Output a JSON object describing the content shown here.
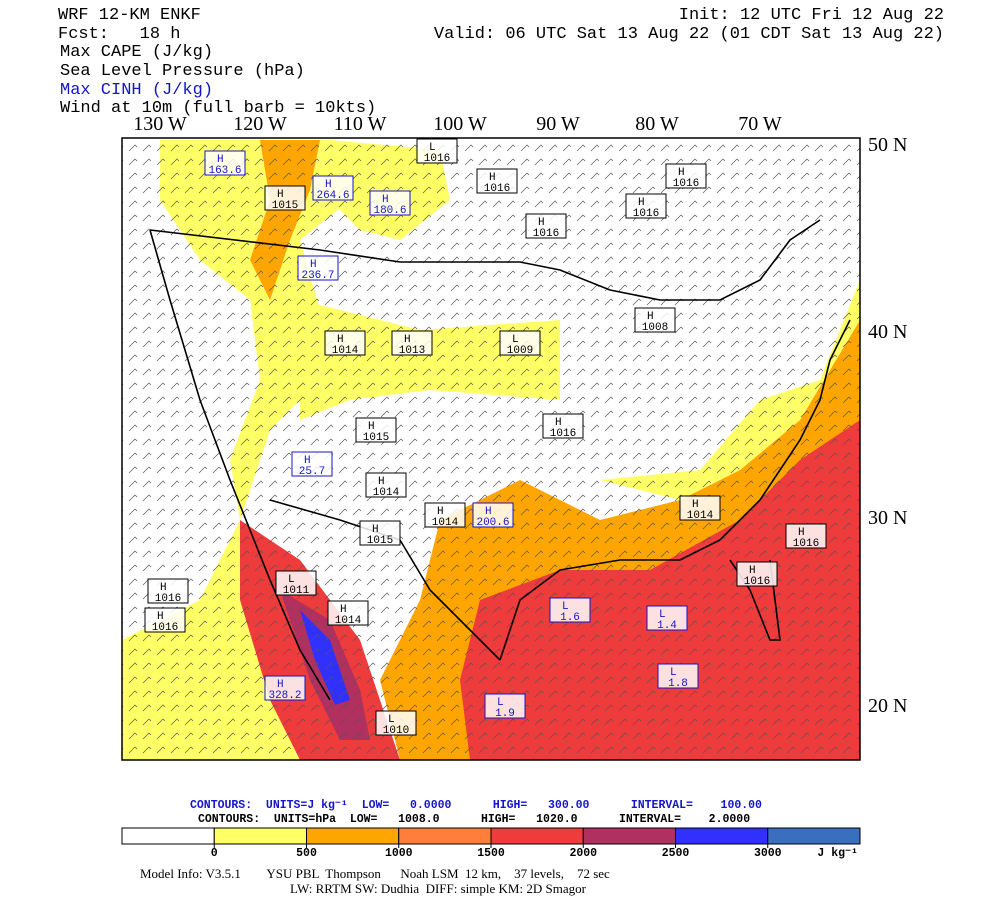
{
  "header": {
    "model": "WRF 12-KM ENKF",
    "init": "Init: 12 UTC Fri 12 Aug 22",
    "fcst": "Fcst:   18 h",
    "valid": "Valid: 06 UTC Sat 13 Aug 22 (01 CDT Sat 13 Aug 22)",
    "fields": [
      "Max CAPE (J/kg)",
      "Sea Level Pressure (hPa)",
      "Max CINH (J/kg)",
      "Wind at 10m (full barb = 10kts)"
    ]
  },
  "axes": {
    "lon_labels": [
      "130 W",
      "120 W",
      "110 W",
      "100 W",
      "90 W",
      "80 W",
      "70 W"
    ],
    "lat_labels": [
      "50 N",
      "40 N",
      "30 N",
      "20 N"
    ]
  },
  "centers": [
    {
      "kind": "H",
      "label": "163.6",
      "color": "#1515c8"
    },
    {
      "kind": "H",
      "label": "264.6",
      "color": "#1515c8"
    },
    {
      "kind": "H",
      "label": "180.6",
      "color": "#1515c8"
    },
    {
      "kind": "H",
      "label": "1015",
      "color": "#000000"
    },
    {
      "kind": "L",
      "label": "1016",
      "color": "#000000"
    },
    {
      "kind": "H",
      "label": "1016",
      "color": "#000000"
    },
    {
      "kind": "H",
      "label": "1016",
      "color": "#000000"
    },
    {
      "kind": "H",
      "label": "1016",
      "color": "#000000"
    },
    {
      "kind": "H",
      "label": "1016",
      "color": "#000000"
    },
    {
      "kind": "H",
      "label": "236.7",
      "color": "#1515c8"
    },
    {
      "kind": "H",
      "label": "1014",
      "color": "#000000"
    },
    {
      "kind": "H",
      "label": "1013",
      "color": "#000000"
    },
    {
      "kind": "L",
      "label": "1009",
      "color": "#000000"
    },
    {
      "kind": "H",
      "label": "1008",
      "color": "#000000"
    },
    {
      "kind": "H",
      "label": "1016",
      "color": "#000000"
    },
    {
      "kind": "H",
      "label": "1015",
      "color": "#000000"
    },
    {
      "kind": "H",
      "label": "25.7",
      "color": "#1515c8"
    },
    {
      "kind": "H",
      "label": "1014",
      "color": "#000000"
    },
    {
      "kind": "H",
      "label": "1014",
      "color": "#000000"
    },
    {
      "kind": "H",
      "label": "1015",
      "color": "#000000"
    },
    {
      "kind": "H",
      "label": "200.6",
      "color": "#1515c8"
    },
    {
      "kind": "H",
      "label": "1014",
      "color": "#000000"
    },
    {
      "kind": "H",
      "label": "1016",
      "color": "#000000"
    },
    {
      "kind": "H",
      "label": "1016",
      "color": "#000000"
    },
    {
      "kind": "L",
      "label": "1011",
      "color": "#000000"
    },
    {
      "kind": "H",
      "label": "1014",
      "color": "#000000"
    },
    {
      "kind": "H",
      "label": "1016",
      "color": "#000000"
    },
    {
      "kind": "H",
      "label": "1016",
      "color": "#000000"
    },
    {
      "kind": "H",
      "label": "328.2",
      "color": "#1515c8"
    },
    {
      "kind": "L",
      "label": "1010",
      "color": "#000000"
    },
    {
      "kind": "L",
      "label": "1.6",
      "color": "#1515c8"
    },
    {
      "kind": "L",
      "label": "1.4",
      "color": "#1515c8"
    },
    {
      "kind": "L",
      "label": "1.8",
      "color": "#1515c8"
    },
    {
      "kind": "L",
      "label": "1.9",
      "color": "#1515c8"
    }
  ],
  "contour_info": [
    "CONTOURS:  UNITS=J kg⁻¹  LOW=   0.0000      HIGH=   300.00      INTERVAL=    100.00",
    "CONTOURS:  UNITS=hPa  LOW=   1008.0      HIGH=   1020.0      INTERVAL=    2.0000"
  ],
  "colorbar": {
    "ticks": [
      0,
      500,
      1000,
      1500,
      2000,
      2500,
      3000
    ],
    "unit": "J kg⁻¹",
    "colors": [
      "#ffffff",
      "#ffff66",
      "#ffa500",
      "#ff7f3a",
      "#ee3b3b",
      "#b03060",
      "#3030ff",
      "#3a6fc0"
    ]
  },
  "model_info": [
    "Model Info: V3.5.1        YSU PBL  Thompson      Noah LSM  12 km,    37 levels,    72 sec",
    "LW: RRTM SW: Dudhia  DIFF: simple KM: 2D Smagor"
  ]
}
